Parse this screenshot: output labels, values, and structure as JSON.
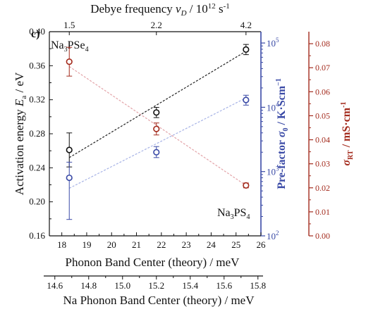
{
  "panel_label": "c)",
  "colors": {
    "black": "#111111",
    "blue": "#3a4aa6",
    "red": "#a32a1c",
    "pink": "#e3a3a8",
    "lightblue": "#a7b3e6"
  },
  "chart_data": {
    "type": "scatter",
    "top_axis": {
      "label_main": "Debye frequency ",
      "label_var": "v",
      "label_sub": "D",
      "label_unit": " / 10",
      "label_exp": "12",
      "label_unit2": " s",
      "label_exp2": "-1",
      "ticks": [
        "1.5",
        "2.2",
        "4.2"
      ],
      "tick_positions": [
        18.3,
        21.8,
        25.4
      ]
    },
    "x_axis": {
      "label": "Phonon Band Center (theory) / meV",
      "range": [
        17.5,
        26
      ],
      "ticks": [
        18,
        19,
        20,
        21,
        22,
        23,
        24,
        25,
        26
      ]
    },
    "x_axis_2": {
      "label": "Na Phonon Band Center (theory) / meV",
      "ticks": [
        "14.6",
        "14.8",
        "15.0",
        "15.2",
        "15.4",
        "15.6",
        "15.8"
      ],
      "tick_positions": [
        17.72,
        19.08,
        20.44,
        21.8,
        23.16,
        24.52,
        25.88
      ]
    },
    "y_left": {
      "label_main": "Activation energy ",
      "label_var": "E",
      "label_sub": "a",
      "label_unit": " / eV",
      "range": [
        0.16,
        0.4
      ],
      "ticks": [
        "0.16",
        "0.20",
        "0.24",
        "0.28",
        "0.32",
        "0.36",
        "0.40"
      ]
    },
    "y_right_1": {
      "label_main": "Pre-factor ",
      "label_var": "σ",
      "label_sub": "0",
      "label_unit": " / K·Scm",
      "label_exp": "−1",
      "scale": "log",
      "range": [
        100,
        150000
      ],
      "ticks": [
        100,
        1000,
        10000,
        100000
      ],
      "tick_labels": [
        {
          "base": "10",
          "exp": "2"
        },
        {
          "base": "10",
          "exp": "3"
        },
        {
          "base": "10",
          "exp": "4"
        },
        {
          "base": "10",
          "exp": "5"
        }
      ]
    },
    "y_right_2": {
      "label_var": "σ",
      "label_sub": "RT",
      "label_unit": " / mS·cm",
      "label_exp": "-1",
      "range": [
        0,
        0.085
      ],
      "ticks": [
        "0.00",
        "0.01",
        "0.02",
        "0.03",
        "0.04",
        "0.05",
        "0.06",
        "0.07",
        "0.08"
      ]
    },
    "series": [
      {
        "axis": "left",
        "color": "black",
        "x": [
          18.3,
          21.8,
          25.4
        ],
        "y": [
          0.261,
          0.305,
          0.379
        ],
        "err": [
          0.02,
          0.006,
          0.006
        ],
        "fit": [
          [
            18.3,
            0.252
          ],
          [
            25.4,
            0.377
          ]
        ]
      },
      {
        "axis": "right1",
        "color": "blue",
        "x": [
          18.3,
          21.8,
          25.4
        ],
        "y": [
          800,
          2000,
          13000
        ],
        "err_lo": [
          180,
          1650,
          10800
        ],
        "err_hi": [
          1400,
          2450,
          15400
        ],
        "fit": [
          [
            18.3,
            550
          ],
          [
            25.4,
            14000
          ]
        ]
      },
      {
        "axis": "right2",
        "color": "red",
        "x": [
          18.3,
          21.8,
          25.4
        ],
        "y": [
          0.0725,
          0.0445,
          0.021
        ],
        "err": [
          0.006,
          0.0025,
          0.001
        ],
        "fit": [
          [
            18.3,
            0.0705
          ],
          [
            25.4,
            0.021
          ]
        ]
      }
    ],
    "annotations": [
      {
        "name": "label-na3psE4",
        "base": "Na",
        "sub": "3",
        "mid": "PSe",
        "sub2": "4"
      },
      {
        "name": "label-na3ps4",
        "base": "Na",
        "sub": "3",
        "mid": "PS",
        "sub2": "4"
      }
    ]
  }
}
